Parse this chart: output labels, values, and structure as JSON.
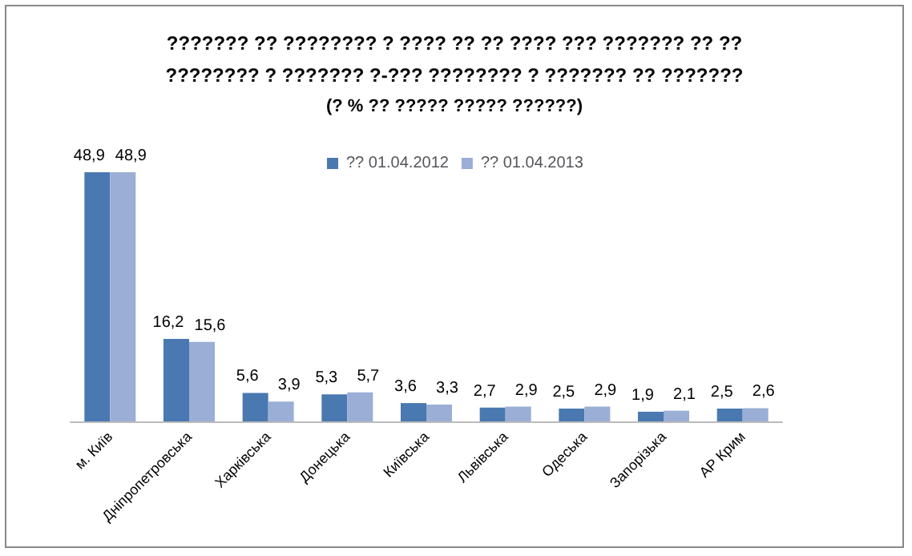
{
  "chart_data": {
    "type": "bar",
    "title": "??????? ?? ???????? ? ???? ?? ?? ???? ??? ??????? ?? ??\n???????? ? ??????? ?-??? ???????? ? ??????? ?? ???????",
    "subtitle": "(? % ?? ????? ????? ??????)",
    "categories": [
      "м. Київ",
      "Дніпропетровська",
      "Харківська",
      "Донецька",
      "Київська",
      "Львівська",
      "Одеська",
      "Запорізька",
      "АР Крим"
    ],
    "series": [
      {
        "name": "?? 01.04.2012",
        "color": "#4a78b0",
        "values": [
          48.9,
          16.2,
          5.6,
          5.3,
          3.6,
          2.7,
          2.5,
          1.9,
          2.5
        ],
        "value_labels": [
          "48,9",
          "16,2",
          "5,6",
          "5,3",
          "3,6",
          "2,7",
          "2,5",
          "1,9",
          "2,5"
        ]
      },
      {
        "name": "?? 01.04.2013",
        "color": "#9aaed6",
        "values": [
          48.9,
          15.6,
          3.9,
          5.7,
          3.3,
          2.9,
          2.9,
          2.1,
          2.6
        ],
        "value_labels": [
          "48,9",
          "15,6",
          "3,9",
          "5,7",
          "3,3",
          "2,9",
          "2,9",
          "2,1",
          "2,6"
        ]
      }
    ],
    "legend": "top"
  }
}
